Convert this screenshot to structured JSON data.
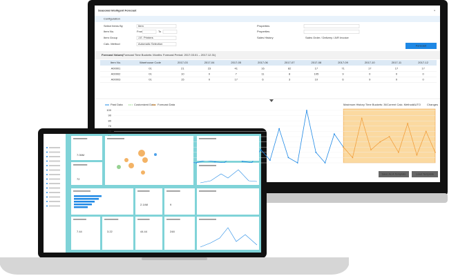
{
  "monitor": {
    "window_title": "Seasonal Intelligent Forecast",
    "section": "Configuration",
    "form": {
      "select_items_by": {
        "label": "Select Items By",
        "value": "Item"
      },
      "item_no": {
        "label": "Item No.",
        "from": "From",
        "to": "To"
      },
      "item_group": {
        "label": "Item Group",
        "value": "J.E. Printers"
      },
      "calc_method": {
        "label": "Calc. Method",
        "value": "Automatic Selection"
      },
      "properties": {
        "label": "Properties"
      },
      "properties_faded": {
        "label": "Properties"
      },
      "sales_history": {
        "label": "Sales History",
        "value": "Sales Order / Delivery / A/R Invoice"
      }
    },
    "forecast_button": "Forecast",
    "table": {
      "title": "Forecast Values",
      "subtitle": "(Forecast Time Buckets: Months",
      "period": "Forecast Period: 2017.03.01 – 2017.12.31)",
      "headers": [
        "Item No.",
        "Warehouse Code",
        "2017-03",
        "2017-04",
        "2017-05",
        "2017-06",
        "2017-07",
        "2017-08",
        "2017-09",
        "2017-10",
        "2017-11",
        "2017-12"
      ],
      "rows": [
        [
          "A00001",
          "01",
          21,
          23,
          41,
          16,
          82,
          17,
          71,
          17,
          17,
          17
        ],
        [
          "A00002",
          "01",
          10,
          0,
          7,
          11,
          8,
          105,
          9,
          0,
          0,
          0
        ],
        [
          "A00003",
          "01",
          15,
          0,
          17,
          6,
          3,
          10,
          6,
          9,
          0,
          0
        ]
      ]
    },
    "chart": {
      "legend": [
        {
          "name": "Past Data",
          "color": "#1e88e5"
        },
        {
          "name": "Customized Data",
          "color": "#7ccf6b"
        },
        {
          "name": "Forecast Data",
          "color": "#f0a040"
        }
      ],
      "max_history": "Maximum History Time Buckets: 36",
      "current_method": "Current Calc. Method:",
      "method_value": "AUTO",
      "changes": "Changes",
      "ylim": [
        0,
        100
      ],
      "yticks": [
        0,
        10,
        20,
        30,
        40,
        50,
        60,
        70,
        80,
        90,
        100
      ],
      "past": [
        2,
        0,
        1,
        0,
        3,
        1,
        0,
        2,
        1,
        0,
        5,
        2,
        0,
        15,
        3,
        0,
        25,
        5,
        65,
        10,
        0,
        100,
        20,
        0,
        55,
        30
      ],
      "forecast": [
        30,
        10,
        85,
        25,
        40,
        50,
        20,
        75,
        15,
        60,
        20
      ]
    },
    "buttons": [
      "Save As A Template",
      "Load Template"
    ]
  },
  "laptop": {
    "kpis": [
      {
        "value": "7.06M",
        "color": "#1e6fd9"
      },
      {
        "value": "72",
        "color": "#1e6fd9"
      },
      {
        "value": "2.14M",
        "color": "#e0262b"
      },
      {
        "value": "9",
        "color": "#2aa84a"
      },
      {
        "value": "7.44",
        "color": "#e0262b"
      },
      {
        "value": "3.22",
        "color": "#e0262b"
      },
      {
        "value": "44.44",
        "color": "#2aa84a"
      },
      {
        "value": "248",
        "color": "#e0262b"
      }
    ]
  }
}
